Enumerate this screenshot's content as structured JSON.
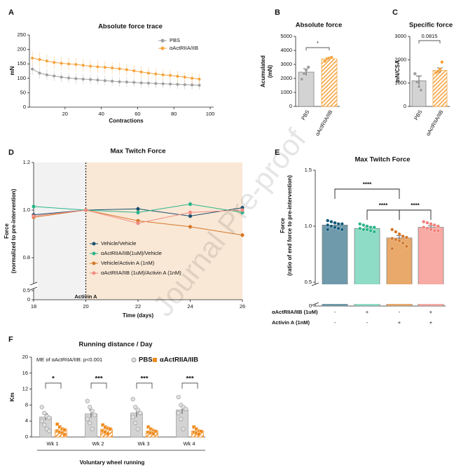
{
  "chart_data": [
    {
      "type": "line",
      "panel_label": "A",
      "title": "Absolute force trace",
      "xlabel": "Contractions",
      "ylabel": [
        "mN"
      ],
      "x": [
        2,
        6,
        10,
        14,
        18,
        22,
        26,
        30,
        34,
        38,
        42,
        46,
        50,
        54,
        58,
        62,
        66,
        70,
        74,
        78,
        82,
        86,
        90,
        94
      ],
      "xlim": [
        0,
        100
      ],
      "xticks": [
        20,
        40,
        60,
        80,
        100
      ],
      "ylim": [
        0,
        250
      ],
      "yticks": [
        0,
        50,
        100,
        150,
        200,
        250
      ],
      "legend": "upper right",
      "series": [
        {
          "name": "PBS",
          "color": "#9e9e9e",
          "values": [
            132,
            118,
            112,
            108,
            104,
            101,
            99,
            97,
            96,
            94,
            92,
            90,
            88,
            87,
            86,
            84,
            83,
            82,
            81,
            80,
            79,
            78,
            77,
            76
          ],
          "errors": [
            20,
            19,
            19,
            18,
            18,
            18,
            18,
            18,
            17,
            17,
            17,
            17,
            17,
            17,
            16,
            16,
            16,
            16,
            16,
            16,
            16,
            16,
            16,
            16
          ]
        },
        {
          "name": "αActRIIA/IIB",
          "color": "#f5a33c",
          "values": [
            170,
            165,
            160,
            155,
            152,
            150,
            148,
            145,
            142,
            140,
            138,
            136,
            133,
            130,
            126,
            122,
            118,
            115,
            112,
            110,
            107,
            104,
            100,
            97
          ],
          "errors": [
            24,
            24,
            23,
            23,
            23,
            22,
            22,
            22,
            22,
            21,
            21,
            21,
            21,
            20,
            20,
            20,
            20,
            19,
            19,
            19,
            19,
            18,
            18,
            18
          ]
        }
      ]
    },
    {
      "type": "bar",
      "panel_label": "B",
      "title": "Absolute force",
      "ylabel": [
        "Acumulated",
        "(mN)"
      ],
      "categories": [
        "PBS",
        "αActRIIA/IIB"
      ],
      "values": [
        2450,
        3400
      ],
      "errors": [
        250,
        110
      ],
      "points": [
        [
          1950,
          2350,
          2600,
          2800
        ],
        [
          3250,
          3400,
          3450,
          3500
        ]
      ],
      "colors": [
        "#d3d3d3",
        "#f5a33c"
      ],
      "point_colors": [
        "#9e9e9e",
        "#f5a33c"
      ],
      "hatch": [
        false,
        true
      ],
      "ylim": [
        0,
        5000
      ],
      "yticks": [
        0,
        1000,
        2000,
        3000,
        4000,
        5000
      ],
      "significance": "*"
    },
    {
      "type": "bar",
      "panel_label": "C",
      "title": "Specific force",
      "ylabel": [
        "mN/CSA"
      ],
      "categories": [
        "PBS",
        "αActRIIA/IIB"
      ],
      "values": [
        1100,
        1550
      ],
      "errors": [
        200,
        100
      ],
      "points": [
        [
          1400,
          1050,
          850,
          700
        ],
        [
          1450,
          1500,
          1600,
          1900
        ]
      ],
      "colors": [
        "#d3d3d3",
        "#f5a33c"
      ],
      "point_colors": [
        "#9e9e9e",
        "#f5a33c"
      ],
      "hatch": [
        false,
        true
      ],
      "ylim": [
        0,
        3000
      ],
      "yticks": [
        0,
        1000,
        2000,
        3000
      ],
      "significance": "0.0815"
    },
    {
      "type": "line",
      "panel_label": "D",
      "title": "Max Twitch Force",
      "xlabel": "Time (days)",
      "ylabel": [
        "Force",
        "(normalized to pre-intervention)"
      ],
      "x": [
        18,
        20,
        22,
        24,
        26
      ],
      "xlim": [
        18,
        26
      ],
      "xticks": [
        18,
        20,
        22,
        24,
        26
      ],
      "ylim": [
        0,
        1.2
      ],
      "y_break": [
        0.5,
        0.7
      ],
      "yticks": [
        0,
        0.5,
        0.8,
        {
          "value": 1,
          "label": "1.0"
        },
        1.2
      ],
      "phases": [
        {
          "start": 18,
          "end": 20,
          "color": "#f2f2f2"
        },
        {
          "start": 20,
          "end": 26,
          "color": "#f9e8d6"
        }
      ],
      "annotation": {
        "x": 20,
        "text": "Activin A"
      },
      "legend": "lower center",
      "series": [
        {
          "name": "Vehicle/Vehicle",
          "color": "#1a4f6e",
          "values": [
            0.98,
            1.0,
            1.005,
            0.975,
            1.01
          ],
          "errors": [
            0.005,
            0,
            0.012,
            0.008,
            0.01
          ]
        },
        {
          "name": "αActRIIA/IIB(1uM)/Vehicle",
          "color": "#2bb58a",
          "values": [
            1.015,
            1.0,
            0.99,
            1.025,
            0.99
          ],
          "errors": [
            0.006,
            0,
            0.01,
            0.01,
            0.008
          ]
        },
        {
          "name": "Vehicle/Activin A (1nM)",
          "color": "#d4782b",
          "values": [
            0.97,
            1.0,
            0.955,
            0.93,
            0.895
          ],
          "errors": [
            0.006,
            0,
            0.01,
            0.01,
            0.01
          ]
        },
        {
          "name": "αActRIIA/IIB (1uM)/Activin A (1nM)",
          "color": "#f28b82",
          "values": [
            0.975,
            1.0,
            0.945,
            0.99,
            1.0
          ],
          "errors": [
            0.006,
            0,
            0.01,
            0.012,
            0.01
          ]
        }
      ]
    },
    {
      "type": "bar",
      "panel_label": "E",
      "title": "Max Twitch Force",
      "ylabel": [
        "Force",
        "(ratio of end force to pre-intervention)"
      ],
      "values": [
        1.01,
        0.98,
        0.895,
        0.99
      ],
      "errors": [
        0.02,
        0.012,
        0.02,
        0.015
      ],
      "points": [
        [
          1.05,
          1.04,
          1.03,
          1.02,
          1.02,
          1.01,
          1.0,
          0.99,
          0.98,
          0.97,
          0.97
        ],
        [
          1.02,
          1.01,
          1.0,
          0.99,
          0.99,
          0.98,
          0.97,
          0.97,
          0.96,
          0.95
        ],
        [
          0.97,
          0.95,
          0.93,
          0.91,
          0.9,
          0.89,
          0.88,
          0.87,
          0.85,
          0.82,
          0.8
        ],
        [
          1.04,
          1.03,
          1.02,
          1.01,
          1.0,
          0.99,
          0.98,
          0.97,
          0.96,
          0.96
        ]
      ],
      "colors": [
        "#6f9aab",
        "#8fdcc6",
        "#e8a96b",
        "#f8aaa4"
      ],
      "point_colors": [
        "#0f5a7a",
        "#2bb58a",
        "#d4782b",
        "#f07f78"
      ],
      "ylim": [
        0,
        1.5
      ],
      "y_break": [
        0,
        0.5
      ],
      "yticks": [
        0,
        0.5,
        {
          "value": 1,
          "label": "1.0"
        },
        1.5
      ],
      "comparisons": [
        {
          "pair": [
            0,
            2
          ],
          "label": "****"
        },
        {
          "pair": [
            1,
            2
          ],
          "label": "****"
        },
        {
          "pair": [
            2,
            3
          ],
          "label": "****"
        }
      ],
      "table": {
        "row_labels": [
          "αActRIIA/IIB (1uM)",
          "Activin A  (1nM)"
        ],
        "rows": [
          [
            "-",
            "+",
            "-",
            "+"
          ],
          [
            "-",
            "-",
            "+",
            "+"
          ]
        ]
      }
    },
    {
      "type": "grouped_bar",
      "panel_label": "F",
      "title": "Running distance / Day",
      "ylabel": [
        "Km"
      ],
      "xlabel": "Voluntary wheel running",
      "note": "ME of αActRIIA/IIB: p<0.001",
      "categories": [
        "Wk 1",
        "Wk 2",
        "Wk 3",
        "Wk 4"
      ],
      "significance": [
        "*",
        "***",
        "***",
        "***"
      ],
      "ylim": [
        0,
        20
      ],
      "yticks": [
        0,
        4,
        8,
        12,
        16,
        20
      ],
      "series": [
        {
          "name": "PBS",
          "color": "#d3d3d3",
          "point_color": "#9e9e9e",
          "hatch": false,
          "values": [
            5.0,
            5.8,
            6.0,
            6.8
          ],
          "errors": [
            0.8,
            1.0,
            1.0,
            1.0
          ],
          "points": [
            [
              7.5,
              6.0,
              5.2,
              4.8,
              4.0,
              3.0,
              2.0,
              1.5
            ],
            [
              9.0,
              7.5,
              6.5,
              5.5,
              4.5,
              3.5,
              2.0
            ],
            [
              9.5,
              7.5,
              6.8,
              6.0,
              5.0,
              3.5,
              2.0
            ],
            [
              10.0,
              8.0,
              7.5,
              7.0,
              6.0,
              4.5,
              2.0
            ]
          ]
        },
        {
          "name": "αActRIIA/IIB",
          "color": "#f08a1c",
          "point_color": "#f08a1c",
          "hatch": true,
          "values": [
            1.8,
            2.0,
            1.5,
            1.5
          ],
          "errors": [
            0.4,
            0.4,
            0.3,
            0.3
          ],
          "points": [
            [
              3.2,
              2.5,
              2.0,
              1.8,
              1.5,
              1.2,
              1.0,
              0.6
            ],
            [
              3.0,
              2.5,
              2.2,
              2.0,
              1.5,
              1.2,
              0.8
            ],
            [
              2.5,
              2.0,
              1.6,
              1.4,
              1.2,
              1.0,
              0.8
            ],
            [
              2.5,
              2.0,
              1.5,
              1.4,
              1.2,
              1.0,
              0.7
            ]
          ]
        }
      ]
    }
  ],
  "watermark": "Journal Pre-proof"
}
